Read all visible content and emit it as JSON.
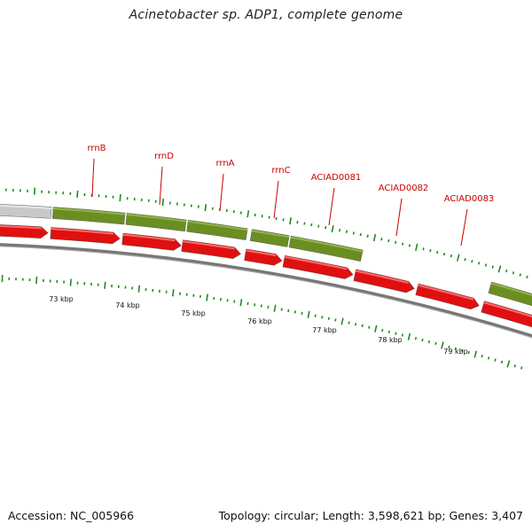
{
  "title": "Acinetobacter sp. ADP1, complete genome",
  "footer": {
    "accession": "Accession: NC_005966",
    "summary": "Topology: circular; Length: 3,598,621 bp; Genes: 3,407"
  },
  "colors": {
    "forward_gene_fill": "#6b8e23",
    "forward_gene_light": "#93b548",
    "reverse_gene_fill": "#e01010",
    "reverse_gene_light": "#ff6a6a",
    "grey_gene_fill": "#c8c8c8",
    "backbone": "#777777",
    "tick": "#1f8a1f",
    "label": "#cc0000",
    "kbp_text": "#111111"
  },
  "map": {
    "kbp_labels": [
      "73 kbp",
      "74 kbp",
      "75 kbp",
      "76 kbp",
      "77 kbp",
      "78 kbp",
      "79 kbp"
    ],
    "gene_labels": [
      "rrnB",
      "rrnD",
      "rrnA",
      "rrnC",
      "ACIAD0081",
      "ACIAD0082",
      "ACIAD0083"
    ]
  }
}
